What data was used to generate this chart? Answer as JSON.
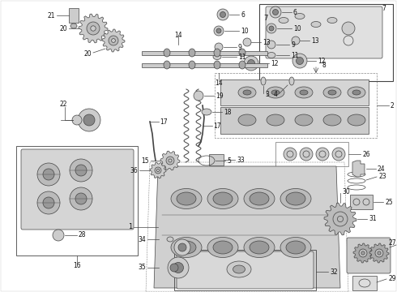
{
  "bg": "#ffffff",
  "lc": "#444444",
  "tc": "#111111",
  "figsize": [
    4.9,
    3.6
  ],
  "dpi": 100,
  "label_fs": 5.5
}
